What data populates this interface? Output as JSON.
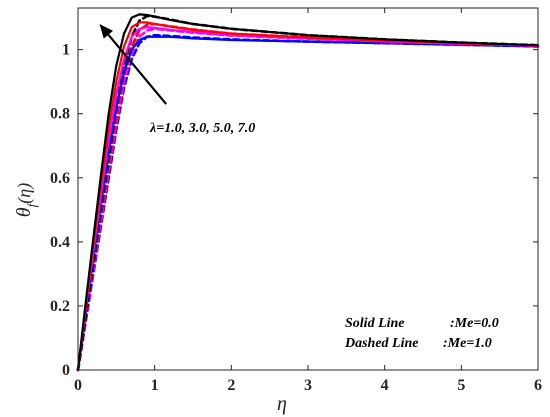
{
  "chart_data": {
    "type": "line",
    "xlabel": "η",
    "ylabel": "θf(η)",
    "ylabel_main": "θ",
    "ylabel_sub": "f",
    "ylabel_tail": "(η)",
    "xlim": [
      0,
      6
    ],
    "ylim": [
      0,
      1.13
    ],
    "xticks": [
      "0",
      "1",
      "2",
      "3",
      "4",
      "5",
      "6"
    ],
    "yticks": [
      "0",
      "0.2",
      "0.4",
      "0.6",
      "0.8",
      "1"
    ],
    "grid": false,
    "annotation": "λ=1.0, 3.0, 5.0, 7.0",
    "legend_notes": [
      {
        "label": "Solid Line",
        "value": ":Me=0.0"
      },
      {
        "label": "Dashed Line",
        "value": ":Me=1.0"
      }
    ],
    "series": [
      {
        "lambda": "1.0",
        "style": "solid",
        "color": "#0000ff",
        "x": [
          0,
          0.1,
          0.2,
          0.3,
          0.4,
          0.5,
          0.6,
          0.7,
          0.8,
          0.9,
          1.0,
          1.2,
          1.5,
          2,
          3,
          4,
          5,
          6
        ],
        "y": [
          0,
          0.18,
          0.35,
          0.52,
          0.68,
          0.82,
          0.93,
          1.0,
          1.03,
          1.04,
          1.04,
          1.04,
          1.035,
          1.03,
          1.025,
          1.02,
          1.015,
          1.01
        ]
      },
      {
        "lambda": "3.0",
        "style": "solid",
        "color": "#ff00ff",
        "x": [
          0,
          0.1,
          0.2,
          0.3,
          0.4,
          0.5,
          0.6,
          0.7,
          0.8,
          0.9,
          1.0,
          1.2,
          1.5,
          2,
          3,
          4,
          5,
          6
        ],
        "y": [
          0,
          0.19,
          0.37,
          0.55,
          0.72,
          0.86,
          0.97,
          1.04,
          1.065,
          1.07,
          1.068,
          1.062,
          1.055,
          1.045,
          1.035,
          1.025,
          1.018,
          1.012
        ]
      },
      {
        "lambda": "5.0",
        "style": "solid",
        "color": "#ff0000",
        "x": [
          0,
          0.1,
          0.2,
          0.3,
          0.4,
          0.5,
          0.6,
          0.7,
          0.8,
          0.9,
          1.0,
          1.2,
          1.5,
          2,
          3,
          4,
          5,
          6
        ],
        "y": [
          0,
          0.2,
          0.39,
          0.58,
          0.76,
          0.9,
          1.01,
          1.07,
          1.085,
          1.085,
          1.08,
          1.072,
          1.062,
          1.05,
          1.038,
          1.028,
          1.02,
          1.013
        ]
      },
      {
        "lambda": "7.0",
        "style": "solid",
        "color": "#000000",
        "x": [
          0,
          0.1,
          0.2,
          0.3,
          0.4,
          0.5,
          0.6,
          0.7,
          0.8,
          0.9,
          1.0,
          1.2,
          1.5,
          2,
          3,
          4,
          5,
          6
        ],
        "y": [
          0,
          0.21,
          0.41,
          0.61,
          0.8,
          0.95,
          1.05,
          1.1,
          1.11,
          1.108,
          1.103,
          1.093,
          1.08,
          1.065,
          1.045,
          1.032,
          1.022,
          1.014
        ]
      },
      {
        "lambda": "1.0",
        "style": "dashed",
        "color": "#0000ff",
        "x": [
          0,
          0.1,
          0.2,
          0.3,
          0.4,
          0.5,
          0.6,
          0.7,
          0.8,
          0.9,
          1.0,
          1.2,
          1.5,
          2,
          3,
          4,
          5,
          6
        ],
        "y": [
          0,
          0.15,
          0.3,
          0.45,
          0.6,
          0.75,
          0.88,
          0.97,
          1.02,
          1.04,
          1.045,
          1.043,
          1.038,
          1.032,
          1.025,
          1.02,
          1.015,
          1.01
        ]
      },
      {
        "lambda": "3.0",
        "style": "dashed",
        "color": "#ff00ff",
        "x": [
          0,
          0.1,
          0.2,
          0.3,
          0.4,
          0.5,
          0.6,
          0.7,
          0.8,
          0.9,
          1.0,
          1.2,
          1.5,
          2,
          3,
          4,
          5,
          6
        ],
        "y": [
          0,
          0.155,
          0.31,
          0.465,
          0.62,
          0.77,
          0.9,
          0.99,
          1.04,
          1.06,
          1.065,
          1.06,
          1.053,
          1.044,
          1.034,
          1.025,
          1.018,
          1.012
        ]
      },
      {
        "lambda": "5.0",
        "style": "dashed",
        "color": "#ff0000",
        "x": [
          0,
          0.1,
          0.2,
          0.3,
          0.4,
          0.5,
          0.6,
          0.7,
          0.8,
          0.9,
          1.0,
          1.2,
          1.5,
          2,
          3,
          4,
          5,
          6
        ],
        "y": [
          0,
          0.16,
          0.32,
          0.48,
          0.64,
          0.79,
          0.92,
          1.01,
          1.06,
          1.078,
          1.08,
          1.073,
          1.063,
          1.05,
          1.038,
          1.028,
          1.02,
          1.013
        ]
      },
      {
        "lambda": "7.0",
        "style": "dashed",
        "color": "#000000",
        "x": [
          0,
          0.1,
          0.2,
          0.3,
          0.4,
          0.5,
          0.6,
          0.7,
          0.8,
          0.9,
          1.0,
          1.2,
          1.5,
          2,
          3,
          4,
          5,
          6
        ],
        "y": [
          0,
          0.165,
          0.33,
          0.5,
          0.66,
          0.82,
          0.95,
          1.04,
          1.09,
          1.105,
          1.103,
          1.094,
          1.08,
          1.065,
          1.045,
          1.032,
          1.022,
          1.014
        ]
      }
    ],
    "arrow": {
      "from": [
        1.15,
        0.83
      ],
      "to": [
        0.28,
        1.08
      ]
    }
  }
}
